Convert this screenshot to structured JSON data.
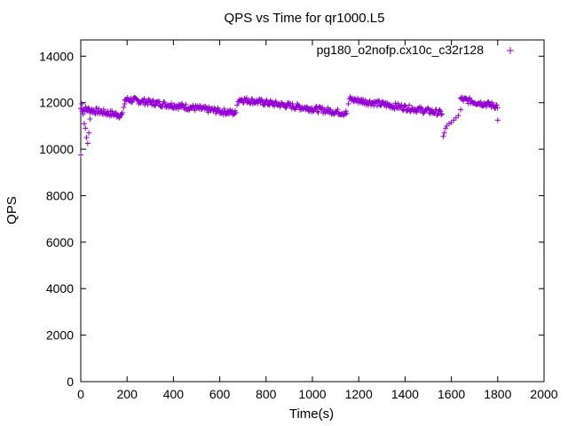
{
  "chart_data": {
    "type": "scatter",
    "title": "QPS vs Time for qr1000.L5",
    "xlabel": "Time(s)",
    "ylabel": "QPS",
    "xlim": [
      0,
      2000
    ],
    "ylim": [
      0,
      14700
    ],
    "x_ticks": [
      0,
      200,
      400,
      600,
      800,
      1000,
      1200,
      1400,
      1600,
      1800,
      2000
    ],
    "y_ticks": [
      0,
      2000,
      4000,
      6000,
      8000,
      10000,
      12000,
      14000
    ],
    "grid": false,
    "legend_position": "top-right",
    "marker": "+",
    "color": "#9400d3",
    "series": [
      {
        "name": "pg180_o2nofp.cx10c_c32r128",
        "segments": [
          {
            "x_start": 0,
            "x_end": 180,
            "y_start": 11750,
            "y_end": 11450
          },
          {
            "x_start": 190,
            "x_end": 670,
            "y_start": 12150,
            "y_end": 11550
          },
          {
            "x_start": 680,
            "x_end": 1150,
            "y_start": 12150,
            "y_end": 11550
          },
          {
            "x_start": 1160,
            "x_end": 1560,
            "y_start": 12150,
            "y_end": 11550
          },
          {
            "x_start": 1640,
            "x_end": 1800,
            "y_start": 12150,
            "y_end": 11850
          }
        ],
        "outliers": [
          [
            0,
            9750
          ],
          [
            5,
            11950
          ],
          [
            10,
            11500
          ],
          [
            15,
            11100
          ],
          [
            20,
            10900
          ],
          [
            25,
            10500
          ],
          [
            30,
            10250
          ],
          [
            35,
            10700
          ],
          [
            40,
            11300
          ],
          [
            185,
            11800
          ],
          [
            190,
            11950
          ],
          [
            675,
            11900
          ],
          [
            1155,
            11950
          ],
          [
            1565,
            10550
          ],
          [
            1570,
            10700
          ],
          [
            1575,
            10900
          ],
          [
            1580,
            11000
          ],
          [
            1590,
            11100
          ],
          [
            1600,
            11150
          ],
          [
            1610,
            11250
          ],
          [
            1620,
            11350
          ],
          [
            1630,
            11450
          ],
          [
            1640,
            11700
          ],
          [
            1800,
            11250
          ]
        ]
      }
    ]
  }
}
